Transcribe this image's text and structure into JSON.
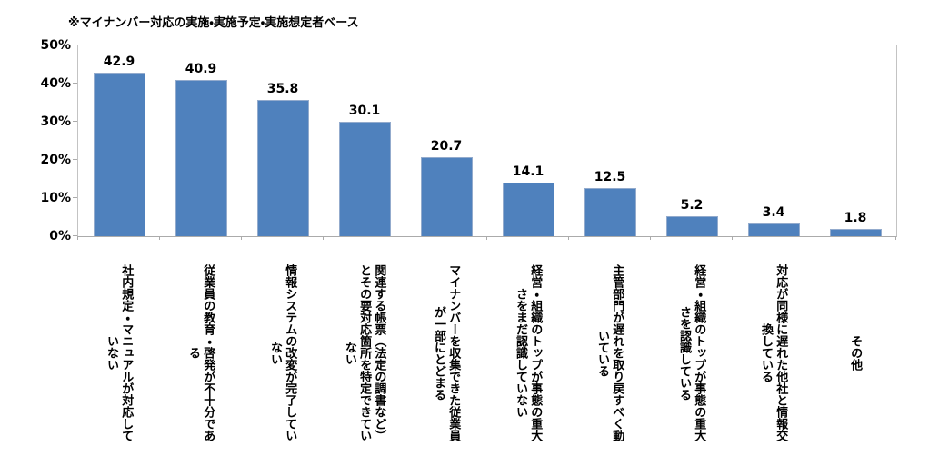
{
  "note": "※マイナンバー対応の実施・実施予定・実施想定者ベース",
  "chart_data": {
    "type": "bar",
    "title": "",
    "note": "※マイナンバー対応の実施・実施予定・実施想定者ベース",
    "categories": [
      "社内規定・マニュアルが対応して\nいない",
      "従業員の教育・啓発が不十分であ\nる",
      "情報システムの改変が完了してい\nない",
      "関連する帳票（法定の調書など）\nとその要対応箇所を特定できてい\nない",
      "マイナンバーを収集できた従業員\nが一部にとどまる",
      "経営・組織のトップが事態の重大\nさをまだ認識していない",
      "主管部門が遅れを取り戻すべく動\nいている",
      "経営・組織のトップが事態の重大\nさを認識している",
      "対応が同様に遅れた他社と情報交\n換している",
      "その他"
    ],
    "values": [
      42.9,
      40.9,
      35.8,
      30.1,
      20.7,
      14.1,
      12.5,
      5.2,
      3.4,
      1.8
    ],
    "value_labels": [
      "42.9",
      "40.9",
      "35.8",
      "30.1",
      "20.7",
      "14.1",
      "12.5",
      "5.2",
      "3.4",
      "1.8"
    ],
    "y_ticks": [
      "0%",
      "10%",
      "20%",
      "30%",
      "40%",
      "50%"
    ],
    "ylim": [
      0,
      50
    ],
    "xlabel": "",
    "ylabel": "",
    "grid": false,
    "legend": false,
    "colors": {
      "bar_fill": "#4F81BD",
      "bar_border": "#93ABCD",
      "axis_line": "#ABABAB",
      "plot_border": "#C3C3C3",
      "text": "#000000"
    }
  }
}
